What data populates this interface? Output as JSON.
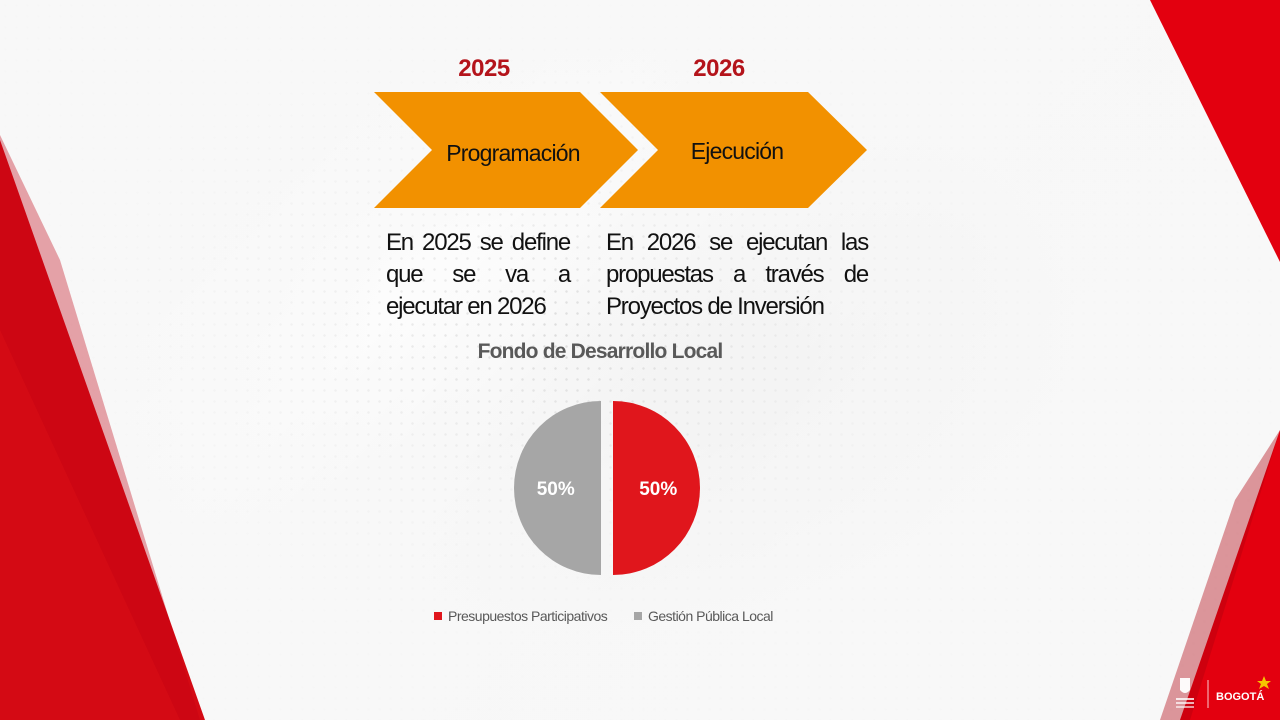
{
  "timeline": {
    "steps": [
      {
        "year": "2025",
        "label": "Programación",
        "description": "En 2025 se define que se va a ejecutar en 2026"
      },
      {
        "year": "2026",
        "label": "Ejecución",
        "description": "En 2026 se ejecutan las propuestas a través de Proyectos de Inversión"
      }
    ]
  },
  "chart_data": {
    "type": "pie",
    "title": "Fondo de Desarrollo Local",
    "slices": [
      {
        "name": "Presupuestos Participativos",
        "value": 50,
        "label": "50%",
        "color": "#e0161c"
      },
      {
        "name": "Gestión Pública Local",
        "value": 50,
        "label": "50%",
        "color": "#a6a6a6"
      }
    ],
    "legend_position": "bottom"
  },
  "colors": {
    "accent_red": "#e2001a",
    "chevron_orange": "#f29100",
    "year_red": "#b4141b"
  },
  "footer": {
    "logos": [
      {
        "icon": "alcaldia-shield-icon"
      },
      {
        "text": "BOGOTÁ"
      }
    ]
  }
}
